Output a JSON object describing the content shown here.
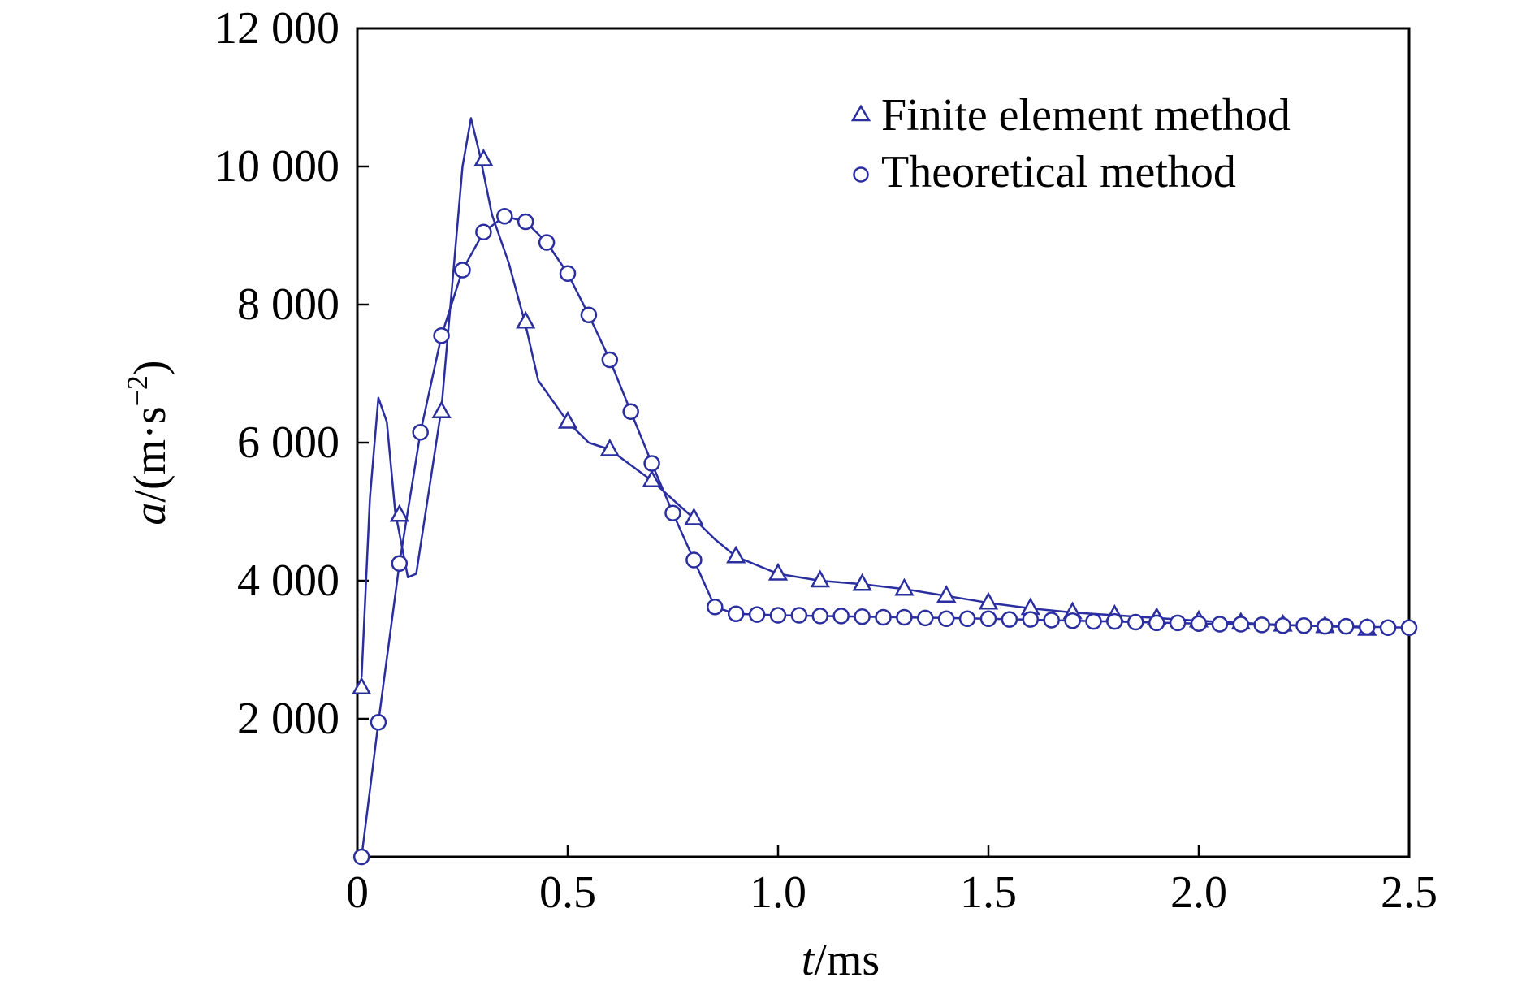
{
  "chart_data": {
    "type": "line",
    "xlabel": {
      "var": "t",
      "unit": "/ms"
    },
    "ylabel": {
      "var": "a",
      "unit_prefix": "/(m·s",
      "unit_exp": "−2",
      "unit_suffix": ")"
    },
    "xlim": [
      0,
      2.5
    ],
    "ylim": [
      0,
      12000
    ],
    "x_ticks": [
      0,
      0.5,
      1.0,
      1.5,
      2.0,
      2.5
    ],
    "x_tick_labels": [
      "0",
      "0.5",
      "1.0",
      "1.5",
      "2.0",
      "2.5"
    ],
    "y_ticks": [
      2000,
      4000,
      6000,
      8000,
      10000,
      12000
    ],
    "y_tick_labels": [
      "2 000",
      "4 000",
      "6 000",
      "8 000",
      "10 000",
      "12 000"
    ],
    "grid": false,
    "legend_position": "top-right",
    "line_color": "#2a2e9e",
    "series": [
      {
        "name": "Finite element method",
        "marker": "triangle",
        "line": [
          [
            0.01,
            2600
          ],
          [
            0.03,
            5200
          ],
          [
            0.05,
            6650
          ],
          [
            0.07,
            6300
          ],
          [
            0.09,
            5000
          ],
          [
            0.12,
            4050
          ],
          [
            0.14,
            4100
          ],
          [
            0.2,
            6500
          ],
          [
            0.25,
            10000
          ],
          [
            0.27,
            10700
          ],
          [
            0.29,
            10200
          ],
          [
            0.32,
            9300
          ],
          [
            0.36,
            8600
          ],
          [
            0.4,
            7700
          ],
          [
            0.43,
            6900
          ],
          [
            0.5,
            6300
          ],
          [
            0.55,
            6000
          ],
          [
            0.6,
            5900
          ],
          [
            0.7,
            5450
          ],
          [
            0.8,
            4900
          ],
          [
            0.85,
            4600
          ],
          [
            0.9,
            4350
          ],
          [
            1.0,
            4100
          ],
          [
            1.1,
            4000
          ],
          [
            1.2,
            3950
          ],
          [
            1.3,
            3880
          ],
          [
            1.4,
            3780
          ],
          [
            1.5,
            3680
          ],
          [
            1.6,
            3600
          ],
          [
            1.7,
            3540
          ],
          [
            1.8,
            3500
          ],
          [
            1.9,
            3460
          ],
          [
            2.0,
            3420
          ],
          [
            2.1,
            3390
          ],
          [
            2.2,
            3360
          ],
          [
            2.3,
            3340
          ],
          [
            2.4,
            3320
          ]
        ],
        "markers": [
          [
            0.01,
            2450
          ],
          [
            0.1,
            4950
          ],
          [
            0.2,
            6450
          ],
          [
            0.3,
            10100
          ],
          [
            0.4,
            7750
          ],
          [
            0.5,
            6300
          ],
          [
            0.6,
            5900
          ],
          [
            0.7,
            5450
          ],
          [
            0.8,
            4900
          ],
          [
            0.9,
            4350
          ],
          [
            1.0,
            4100
          ],
          [
            1.1,
            4000
          ],
          [
            1.2,
            3950
          ],
          [
            1.3,
            3880
          ],
          [
            1.4,
            3780
          ],
          [
            1.5,
            3680
          ],
          [
            1.6,
            3600
          ],
          [
            1.7,
            3540
          ],
          [
            1.8,
            3500
          ],
          [
            1.9,
            3460
          ],
          [
            2.0,
            3420
          ],
          [
            2.1,
            3390
          ],
          [
            2.2,
            3360
          ],
          [
            2.3,
            3340
          ],
          [
            2.4,
            3300
          ]
        ]
      },
      {
        "name": "Theoretical method",
        "marker": "circle",
        "line": [
          [
            0.01,
            0
          ],
          [
            0.05,
            1950
          ],
          [
            0.1,
            4250
          ],
          [
            0.15,
            6150
          ],
          [
            0.2,
            7550
          ],
          [
            0.25,
            8500
          ],
          [
            0.3,
            9050
          ],
          [
            0.35,
            9280
          ],
          [
            0.4,
            9200
          ],
          [
            0.45,
            8900
          ],
          [
            0.5,
            8450
          ],
          [
            0.55,
            7850
          ],
          [
            0.6,
            7200
          ],
          [
            0.65,
            6450
          ],
          [
            0.7,
            5700
          ],
          [
            0.75,
            4980
          ],
          [
            0.8,
            4300
          ],
          [
            0.85,
            3620
          ],
          [
            0.9,
            3520
          ],
          [
            1.0,
            3500
          ],
          [
            1.2,
            3480
          ],
          [
            1.5,
            3450
          ],
          [
            2.0,
            3380
          ],
          [
            2.5,
            3320
          ]
        ],
        "markers": [
          [
            0.01,
            0
          ],
          [
            0.05,
            1950
          ],
          [
            0.1,
            4250
          ],
          [
            0.15,
            6150
          ],
          [
            0.2,
            7550
          ],
          [
            0.25,
            8500
          ],
          [
            0.3,
            9050
          ],
          [
            0.35,
            9280
          ],
          [
            0.4,
            9200
          ],
          [
            0.45,
            8900
          ],
          [
            0.5,
            8450
          ],
          [
            0.55,
            7850
          ],
          [
            0.6,
            7200
          ],
          [
            0.65,
            6450
          ],
          [
            0.7,
            5700
          ],
          [
            0.75,
            4980
          ],
          [
            0.8,
            4300
          ],
          [
            0.85,
            3620
          ],
          [
            0.9,
            3520
          ],
          [
            0.95,
            3510
          ],
          [
            1.0,
            3500
          ],
          [
            1.05,
            3500
          ],
          [
            1.1,
            3490
          ],
          [
            1.15,
            3490
          ],
          [
            1.2,
            3480
          ],
          [
            1.25,
            3470
          ],
          [
            1.3,
            3470
          ],
          [
            1.35,
            3460
          ],
          [
            1.4,
            3450
          ],
          [
            1.45,
            3450
          ],
          [
            1.5,
            3450
          ],
          [
            1.55,
            3440
          ],
          [
            1.6,
            3440
          ],
          [
            1.65,
            3430
          ],
          [
            1.7,
            3420
          ],
          [
            1.75,
            3410
          ],
          [
            1.8,
            3410
          ],
          [
            1.85,
            3400
          ],
          [
            1.9,
            3390
          ],
          [
            1.95,
            3390
          ],
          [
            2.0,
            3380
          ],
          [
            2.05,
            3370
          ],
          [
            2.1,
            3370
          ],
          [
            2.15,
            3360
          ],
          [
            2.2,
            3350
          ],
          [
            2.25,
            3350
          ],
          [
            2.3,
            3340
          ],
          [
            2.35,
            3340
          ],
          [
            2.4,
            3330
          ],
          [
            2.45,
            3320
          ],
          [
            2.5,
            3320
          ]
        ]
      }
    ]
  }
}
